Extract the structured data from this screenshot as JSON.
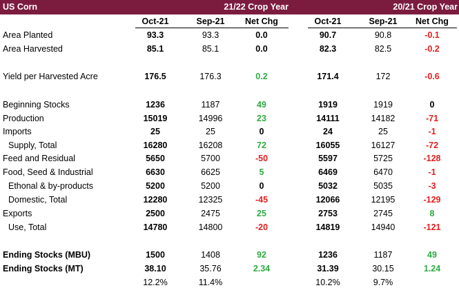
{
  "header": {
    "label": "US Corn",
    "crop_year_1": "21/22 Crop Year",
    "crop_year_2": "20/21 Crop Year"
  },
  "columns": [
    "Oct-21",
    "Sep-21",
    "Net Chg",
    "Oct-21",
    "Sep-21",
    "Net Chg"
  ],
  "colors": {
    "header_bg": "#7b1c3e",
    "positive": "#2eaa42",
    "negative": "#e31e1e"
  },
  "rows": [
    {
      "label": "Area Planted",
      "v": [
        "93.3",
        "93.3",
        "0.0",
        "90.7",
        "90.8",
        "-0.1"
      ],
      "s": [
        "neu",
        "neg"
      ]
    },
    {
      "label": "Area Harvested",
      "v": [
        "85.1",
        "85.1",
        "0.0",
        "82.3",
        "82.5",
        "-0.2"
      ],
      "s": [
        "neu",
        "neg"
      ]
    },
    {
      "label": "Yield per Harvested Acre",
      "v": [
        "176.5",
        "176.3",
        "0.2",
        "171.4",
        "172",
        "-0.6"
      ],
      "s": [
        "pos",
        "neg"
      ]
    },
    {
      "label": "Beginning Stocks",
      "v": [
        "1236",
        "1187",
        "49",
        "1919",
        "1919",
        "0"
      ],
      "s": [
        "pos",
        "neu"
      ]
    },
    {
      "label": "Production",
      "v": [
        "15019",
        "14996",
        "23",
        "14111",
        "14182",
        "-71"
      ],
      "s": [
        "pos",
        "neg"
      ]
    },
    {
      "label": "Imports",
      "v": [
        "25",
        "25",
        "0",
        "24",
        "25",
        "-1"
      ],
      "s": [
        "neu",
        "neg"
      ]
    },
    {
      "label": "Supply, Total",
      "v": [
        "16280",
        "16208",
        "72",
        "16055",
        "16127",
        "-72"
      ],
      "s": [
        "pos",
        "neg"
      ]
    },
    {
      "label": "Feed and Residual",
      "v": [
        "5650",
        "5700",
        "-50",
        "5597",
        "5725",
        "-128"
      ],
      "s": [
        "neg",
        "neg"
      ]
    },
    {
      "label": "Food, Seed & Industrial",
      "v": [
        "6630",
        "6625",
        "5",
        "6469",
        "6470",
        "-1"
      ],
      "s": [
        "pos",
        "neg"
      ]
    },
    {
      "label": "Ethonal & by-products",
      "v": [
        "5200",
        "5200",
        "0",
        "5032",
        "5035",
        "-3"
      ],
      "s": [
        "neu",
        "neg"
      ]
    },
    {
      "label": "Domestic, Total",
      "v": [
        "12280",
        "12325",
        "-45",
        "12066",
        "12195",
        "-129"
      ],
      "s": [
        "neg",
        "neg"
      ]
    },
    {
      "label": "Exports",
      "v": [
        "2500",
        "2475",
        "25",
        "2753",
        "2745",
        "8"
      ],
      "s": [
        "pos",
        "pos"
      ]
    },
    {
      "label": "Use, Total",
      "v": [
        "14780",
        "14800",
        "-20",
        "14819",
        "14940",
        "-121"
      ],
      "s": [
        "neg",
        "neg"
      ]
    },
    {
      "label": "Ending Stocks (MBU)",
      "v": [
        "1500",
        "1408",
        "92",
        "1236",
        "1187",
        "49"
      ],
      "s": [
        "pos",
        "pos"
      ]
    },
    {
      "label": "Ending Stocks (MT)",
      "v": [
        "38.10",
        "35.76",
        "2.34",
        "31.39",
        "30.15",
        "1.24"
      ],
      "s": [
        "pos",
        "pos"
      ]
    },
    {
      "label": "",
      "v": [
        "12.2%",
        "11.4%",
        "",
        "10.2%",
        "9.7%",
        ""
      ],
      "s": [
        "neu",
        "neu"
      ]
    }
  ]
}
